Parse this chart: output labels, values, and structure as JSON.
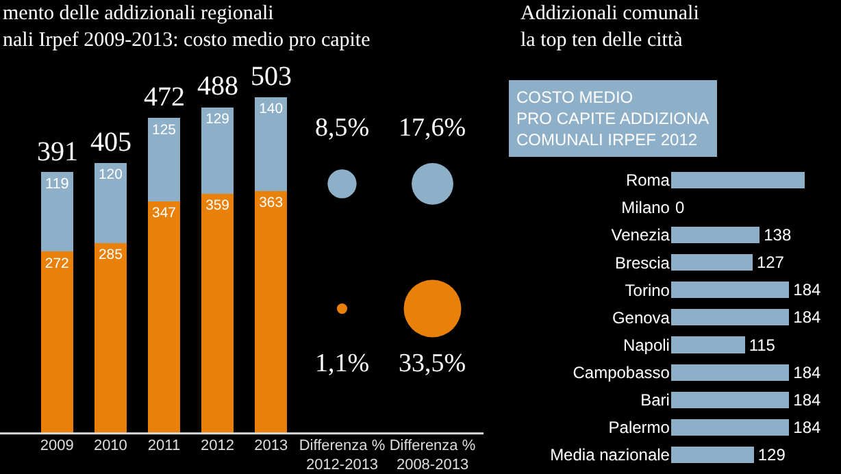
{
  "chart_data": [
    {
      "type": "bar",
      "title": "mento delle addizionali regionali\nnali Irpef 2009-2013: costo medio pro capite",
      "categories": [
        "2009",
        "2010",
        "2011",
        "2012",
        "2013"
      ],
      "stacked": true,
      "series": [
        {
          "color": "#e8800a",
          "values": [
            272,
            285,
            347,
            359,
            363
          ]
        },
        {
          "color": "#8eafc8",
          "values": [
            119,
            120,
            125,
            129,
            140
          ]
        }
      ],
      "totals": [
        "391",
        "405",
        "472",
        "488",
        "503"
      ],
      "data_labels": true,
      "tick_labels": "x"
    },
    {
      "type": "other",
      "categories": [
        "Differenza %\n2012-2013",
        "Differenza %\n2008-2013"
      ],
      "series": [
        {
          "color": "#8eafc8",
          "values": [
            8.5,
            17.6
          ],
          "value_labels": [
            "8,5%",
            "17,6%"
          ]
        },
        {
          "color": "#e8800a",
          "values": [
            1.1,
            33.5
          ],
          "value_labels": [
            "1,1%",
            "33,5%"
          ]
        }
      ],
      "legend": false
    },
    {
      "type": "bar",
      "orientation": "horizontal",
      "title": "Addizionali comunali\nla top ten delle città",
      "subtitle": "COSTO MEDIO\nPRO CAPITE ADDIZIONA\nCOMUNALI IRPEF 2012",
      "categories": [
        "Roma",
        "Milano",
        "Venezia",
        "Brescia",
        "Torino",
        "Genova",
        "Napoli",
        "Campobasso",
        "Bari",
        "Palermo",
        "Media nazionale"
      ],
      "color": "#8eafc8",
      "values": [
        208,
        0,
        138,
        127,
        184,
        184,
        115,
        184,
        184,
        184,
        129
      ],
      "value_labels": [
        null,
        "0",
        "138",
        "127",
        "184",
        "184",
        "115",
        "184",
        "184",
        "184",
        "129"
      ],
      "tick_labels": "y"
    }
  ]
}
